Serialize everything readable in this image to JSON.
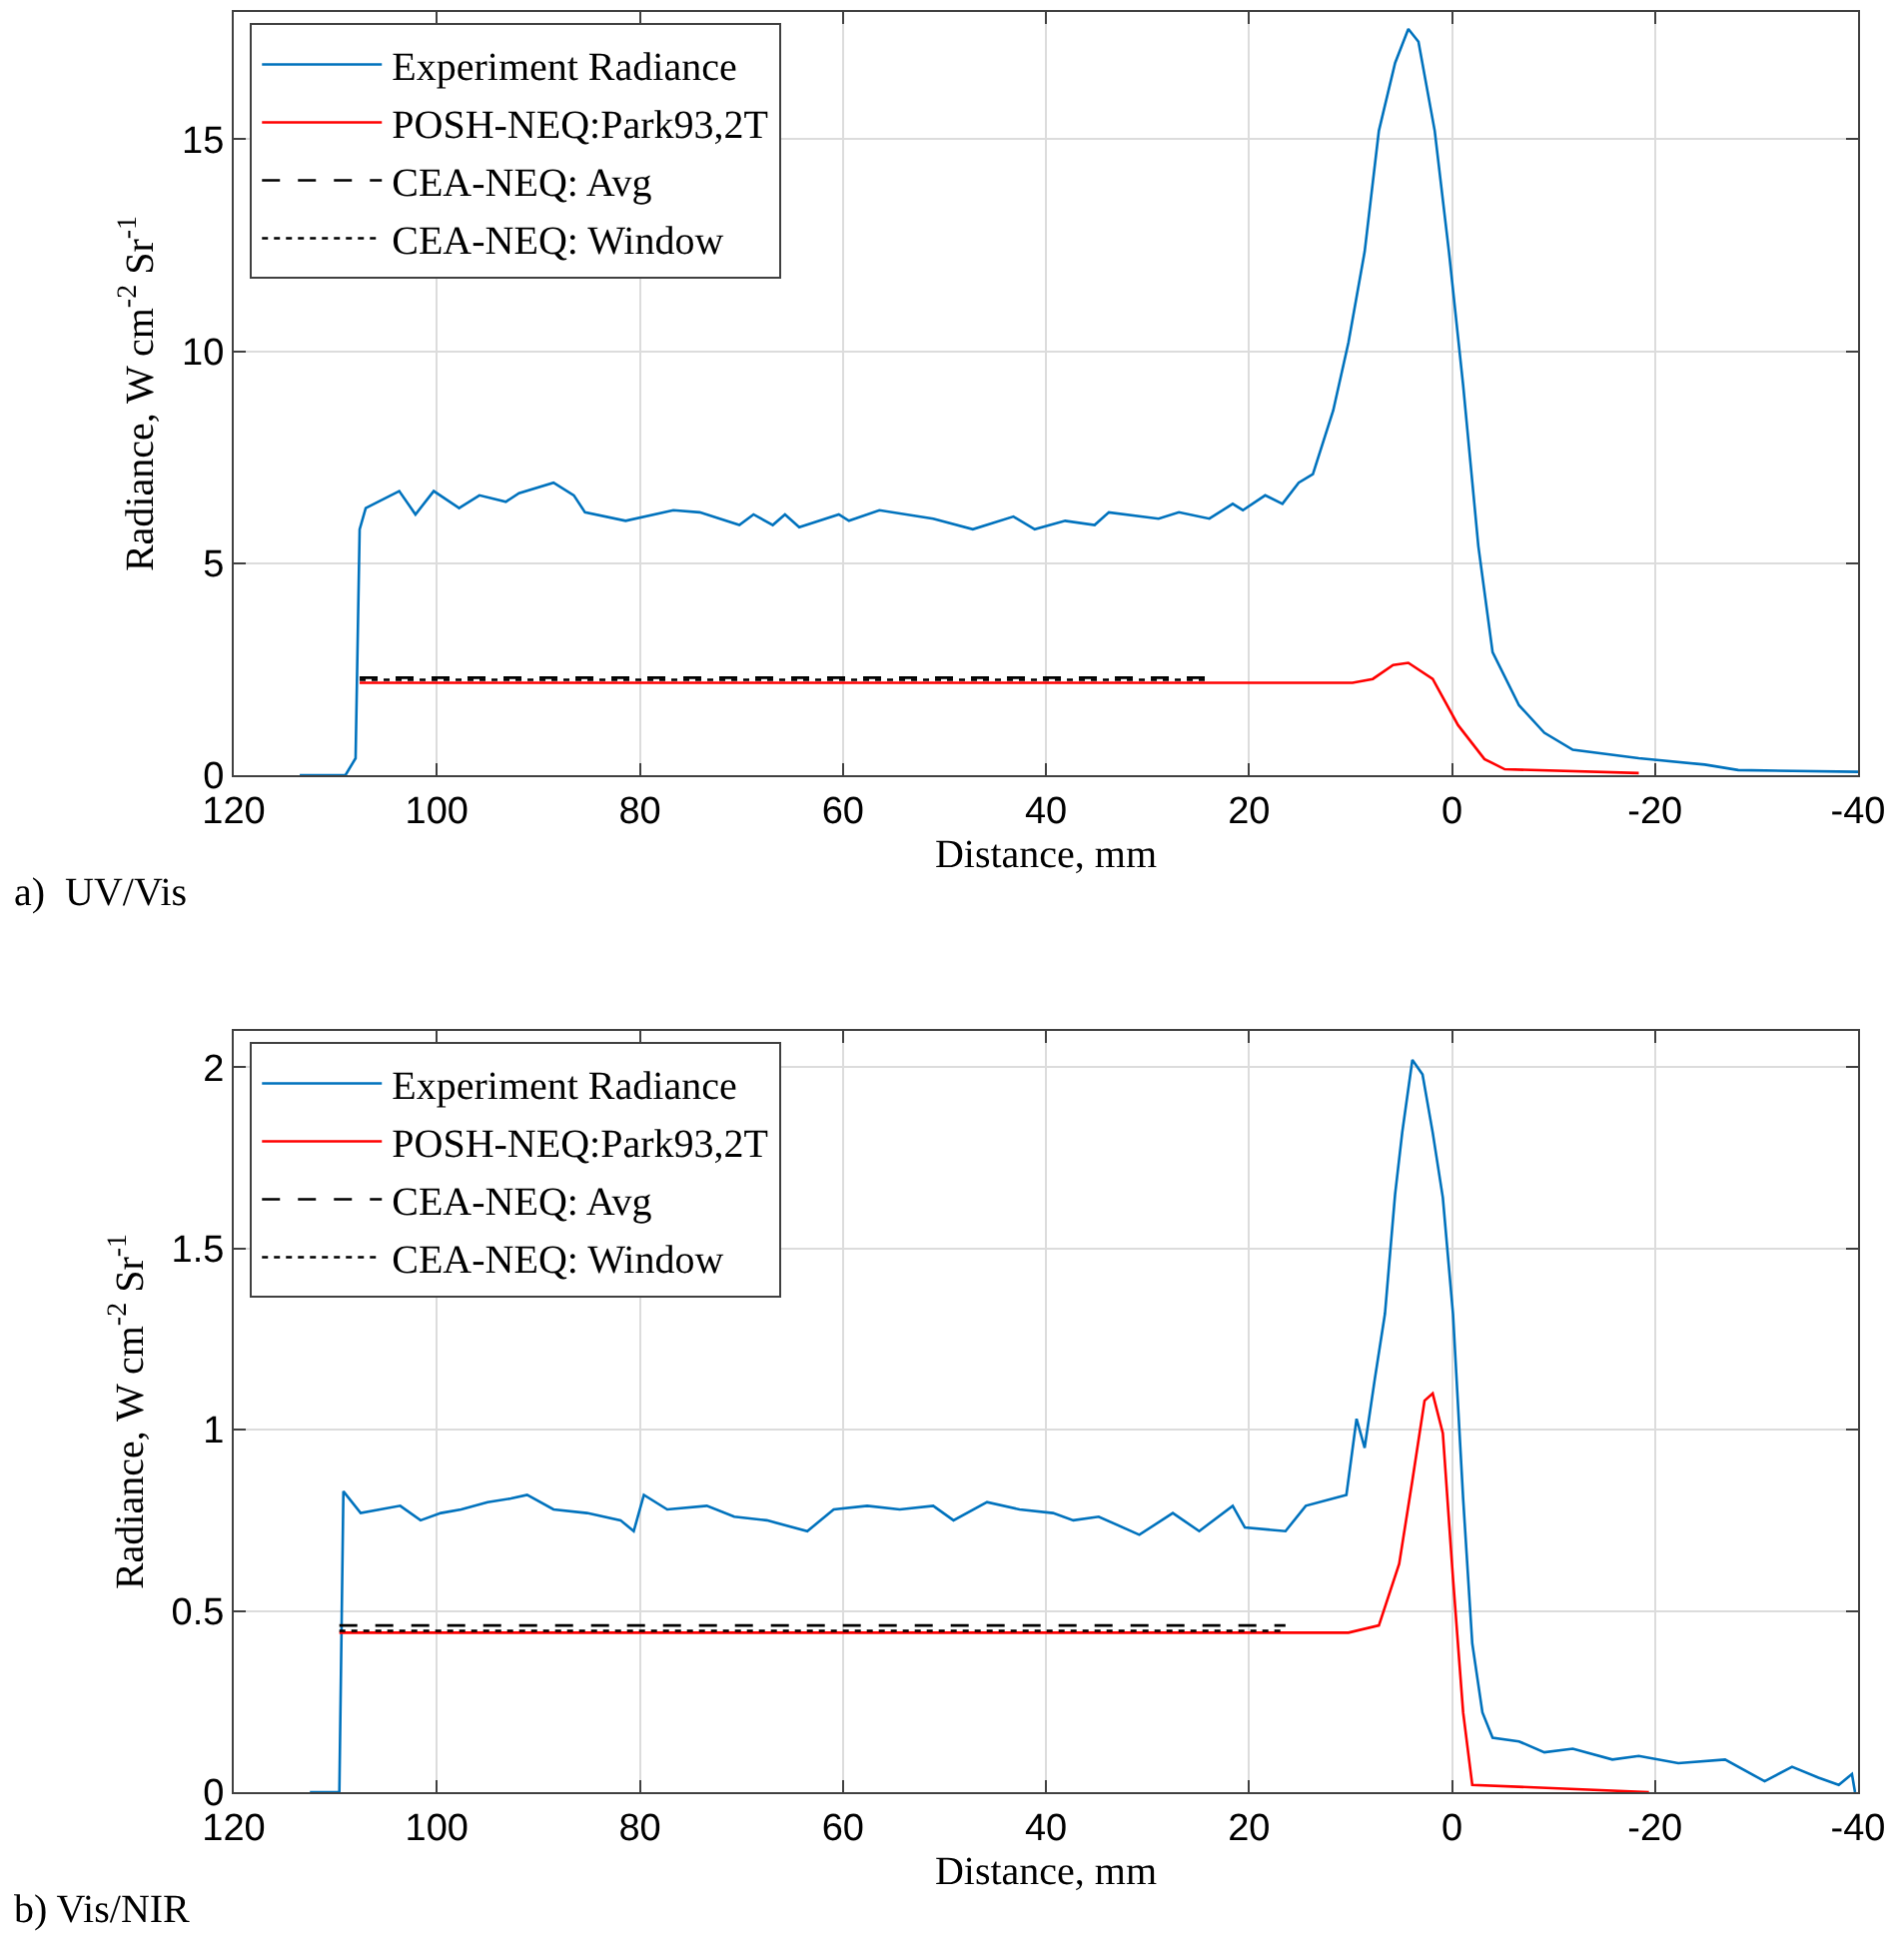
{
  "chart_data": [
    {
      "type": "line",
      "xlabel": "Distance, mm",
      "ylabel": "Radiance, W cm$^{-2}$ Sr$^{-1}$",
      "annotations": [
        "a)  UV/Vis"
      ],
      "xlim": [
        120,
        -40
      ],
      "xticks": [
        120,
        100,
        80,
        60,
        40,
        20,
        0,
        -20,
        -40
      ],
      "ylim": [
        0,
        18
      ],
      "yticks": [
        0,
        5,
        10,
        15
      ],
      "grid": true,
      "legend": "top left",
      "series": [
        {
          "name": "Experiment Radiance",
          "color": "#0072bd",
          "line_style": "solid",
          "x": [
            113.5,
            109,
            108,
            107.6,
            107,
            103.7,
            102.1,
            100.3,
            97.8,
            95.8,
            93.2,
            91.9,
            88.5,
            86.5,
            85.4,
            81.4,
            76.7,
            74.1,
            70.2,
            68.8,
            66.9,
            65.7,
            64.3,
            60.4,
            59.4,
            56.4,
            51.1,
            47.2,
            43.2,
            41.1,
            38.1,
            35.2,
            33.8,
            28.9,
            26.9,
            23.9,
            21.6,
            20.6,
            18.4,
            16.7,
            15.1,
            13.7,
            11.7,
            10.2,
            8.6,
            7.2,
            5.6,
            4.3,
            3.3,
            1.7,
            0.3,
            -1.1,
            -2.6,
            -4.0,
            -6.6,
            -9.1,
            -11.9,
            -18.4,
            -24.9,
            -28.2,
            -40
          ],
          "values": [
            0,
            0,
            0.4,
            5.8,
            6.3,
            6.7,
            6.15,
            6.7,
            6.3,
            6.6,
            6.45,
            6.65,
            6.9,
            6.6,
            6.2,
            6.0,
            6.25,
            6.2,
            5.9,
            6.15,
            5.9,
            6.15,
            5.85,
            6.15,
            6.0,
            6.25,
            6.05,
            5.8,
            6.1,
            5.8,
            6.0,
            5.9,
            6.2,
            6.05,
            6.2,
            6.05,
            6.4,
            6.25,
            6.6,
            6.4,
            6.9,
            7.1,
            8.6,
            10.2,
            12.35,
            15.2,
            16.8,
            17.6,
            17.3,
            15.2,
            12.35,
            9.2,
            5.4,
            2.9,
            1.65,
            1.0,
            0.6,
            0.4,
            0.25,
            0.12,
            0.08
          ]
        },
        {
          "name": "POSH-NEQ:Park93,2T",
          "color": "#ff0000",
          "line_style": "solid",
          "x": [
            107.6,
            9.8,
            7.8,
            5.8,
            4.3,
            1.9,
            -0.6,
            -3.2,
            -5.2,
            -18.4
          ],
          "values": [
            2.18,
            2.18,
            2.27,
            2.6,
            2.65,
            2.27,
            1.18,
            0.38,
            0.14,
            0.05
          ]
        },
        {
          "name": "CEA-NEQ: Avg",
          "color": "#000000",
          "line_style": "dashed",
          "x": [
            107.6,
            23.9
          ],
          "values": [
            2.3,
            2.3
          ]
        },
        {
          "name": "CEA-NEQ: Window",
          "color": "#000000",
          "line_style": "dotted",
          "x": [
            107.6,
            23.9
          ],
          "values": [
            2.25,
            2.25
          ]
        }
      ]
    },
    {
      "type": "line",
      "xlabel": "Distance, mm",
      "ylabel": "Radiance, W cm$^{-2}$ Sr$^{-1}$",
      "annotations": [
        "b) Vis/NIR"
      ],
      "xlim": [
        120,
        -40
      ],
      "xticks": [
        120,
        100,
        80,
        60,
        40,
        20,
        0,
        -20,
        -40
      ],
      "ylim": [
        0,
        2.1
      ],
      "yticks": [
        0,
        0.5,
        1,
        1.5,
        2
      ],
      "grid": true,
      "legend": "top left",
      "series": [
        {
          "name": "Experiment Radiance",
          "color": "#0072bd",
          "line_style": "solid",
          "x": [
            112.5,
            109.6,
            109.2,
            107.5,
            103.6,
            101.6,
            99.6,
            97.6,
            95.0,
            92.7,
            91.1,
            88.5,
            85.2,
            81.9,
            80.6,
            79.6,
            77.3,
            73.4,
            70.7,
            67.5,
            63.5,
            60.9,
            57.6,
            54.4,
            51.1,
            49.1,
            45.8,
            42.6,
            39.3,
            37.3,
            34.8,
            30.8,
            27.5,
            24.9,
            21.6,
            20.4,
            16.4,
            14.4,
            11.7,
            10.4,
            9.4,
            8.6,
            7.6,
            6.6,
            5.6,
            4.9,
            3.9,
            2.9,
            1.9,
            0.9,
            -0.1,
            -1.1,
            -2.0,
            -3.0,
            -4.0,
            -6.6,
            -9.1,
            -11.9,
            -15.8,
            -18.4,
            -22.3,
            -26.9,
            -30.8,
            -33.5,
            -36.1,
            -38.1,
            -39.4,
            -39.7
          ],
          "values": [
            0,
            0,
            0.83,
            0.77,
            0.79,
            0.75,
            0.77,
            0.78,
            0.8,
            0.81,
            0.82,
            0.78,
            0.77,
            0.75,
            0.72,
            0.82,
            0.78,
            0.79,
            0.76,
            0.75,
            0.72,
            0.78,
            0.79,
            0.78,
            0.79,
            0.75,
            0.8,
            0.78,
            0.77,
            0.75,
            0.76,
            0.71,
            0.77,
            0.72,
            0.79,
            0.73,
            0.72,
            0.79,
            0.81,
            0.82,
            1.03,
            0.95,
            1.14,
            1.32,
            1.65,
            1.82,
            2.02,
            1.98,
            1.82,
            1.64,
            1.32,
            0.81,
            0.41,
            0.22,
            0.15,
            0.14,
            0.11,
            0.12,
            0.09,
            0.1,
            0.08,
            0.09,
            0.03,
            0.07,
            0.04,
            0.02,
            0.05,
            0.0
          ]
        },
        {
          "name": "POSH-NEQ:Park93,2T",
          "color": "#ff0000",
          "line_style": "solid",
          "x": [
            109.6,
            10.2,
            7.2,
            5.2,
            3.9,
            2.7,
            1.9,
            0.9,
            -0.1,
            -1.1,
            -2.0,
            -19.4
          ],
          "values": [
            0.44,
            0.44,
            0.46,
            0.63,
            0.86,
            1.08,
            1.1,
            0.99,
            0.59,
            0.22,
            0.02,
            0.0
          ]
        },
        {
          "name": "CEA-NEQ: Avg",
          "color": "#000000",
          "line_style": "dashed",
          "x": [
            109.6,
            16.4
          ],
          "values": [
            0.46,
            0.46
          ]
        },
        {
          "name": "CEA-NEQ: Window",
          "color": "#000000",
          "line_style": "dotted",
          "x": [
            109.6,
            16.4
          ],
          "values": [
            0.445,
            0.445
          ]
        }
      ]
    }
  ]
}
